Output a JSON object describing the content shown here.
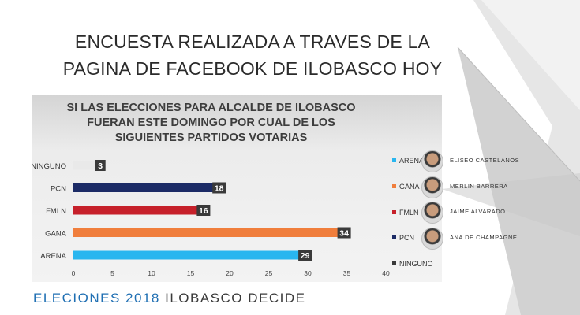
{
  "slide": {
    "title_line1": "ENCUESTA REALIZADA A TRAVES DE LA",
    "title_line2": "PAGINA DE FACEBOOK DE ILOBASCO HOY",
    "footer_part1": "ELECIONES 2018",
    "footer_part2": "ILOBASCO DECIDE"
  },
  "colors": {
    "ARENA": "#29b6ef",
    "GANA": "#f07e3c",
    "FMLN": "#c6202a",
    "PCN": "#1c2b66",
    "NINGUNO": "#e9e9e9",
    "label_box": "#3a3a3a",
    "footer_accent": "#1f6fb3"
  },
  "chart_data": {
    "type": "bar",
    "orientation": "horizontal",
    "title_lines": [
      "SI LAS ELECCIONES PARA ALCALDE DE ILOBASCO",
      "FUERAN ESTE DOMINGO POR CUAL DE LOS",
      "SIGUIENTES PARTIDOS VOTARIAS"
    ],
    "categories": [
      "NINGUNO",
      "PCN",
      "FMLN",
      "GANA",
      "ARENA"
    ],
    "values": [
      3,
      18,
      16,
      34,
      29
    ],
    "xlim": [
      0,
      40
    ],
    "xticks": [
      0,
      5,
      10,
      15,
      20,
      25,
      30,
      35,
      40
    ],
    "grid": false,
    "legend_position": "right"
  },
  "legend": [
    {
      "party": "ARENA",
      "candidate": "ELISEO CASTELANOS",
      "icon": "candidate-photo"
    },
    {
      "party": "GANA",
      "candidate": "MERLIN BARRERA",
      "icon": "candidate-photo"
    },
    {
      "party": "FMLN",
      "candidate": "JAIME ALVARADO",
      "icon": "candidate-photo"
    },
    {
      "party": "PCN",
      "candidate": "ANA DE CHAMPAGNE",
      "icon": "candidate-photo"
    },
    {
      "party": "NINGUNO",
      "candidate": ""
    }
  ]
}
